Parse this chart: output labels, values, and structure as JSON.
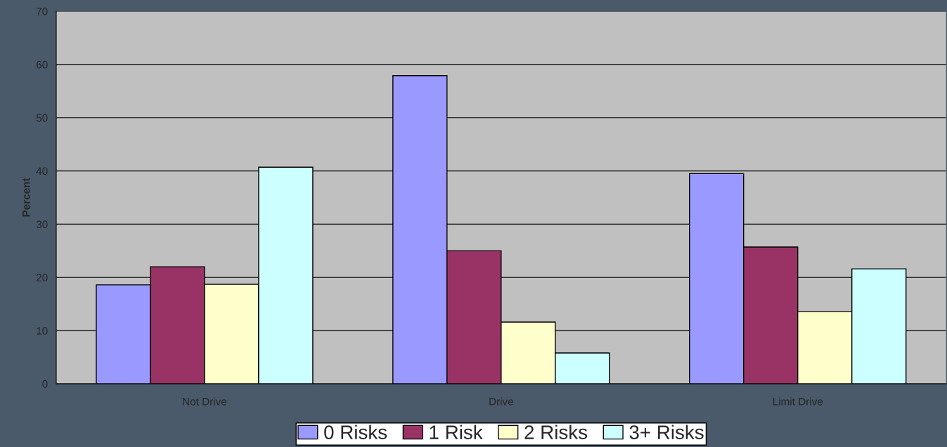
{
  "chart_data": {
    "type": "bar",
    "ylabel": "Percent",
    "categories": [
      "Not Drive",
      "Drive",
      "Limit Drive"
    ],
    "series": [
      {
        "name": "0 Risks",
        "color": "#9999ff",
        "values": [
          18.6,
          57.9,
          39.5
        ]
      },
      {
        "name": "1 Risk",
        "color": "#993366",
        "values": [
          22.0,
          25.0,
          25.7
        ]
      },
      {
        "name": "2 Risks",
        "color": "#ffffcc",
        "values": [
          18.7,
          11.6,
          13.6
        ]
      },
      {
        "name": "3+ Risks",
        "color": "#ccffff",
        "values": [
          40.7,
          5.8,
          21.6
        ]
      }
    ],
    "ylim": [
      0,
      70
    ],
    "yticks": [
      0,
      10,
      20,
      30,
      40,
      50,
      60,
      70
    ],
    "grid": "y",
    "legend": "bottom"
  }
}
